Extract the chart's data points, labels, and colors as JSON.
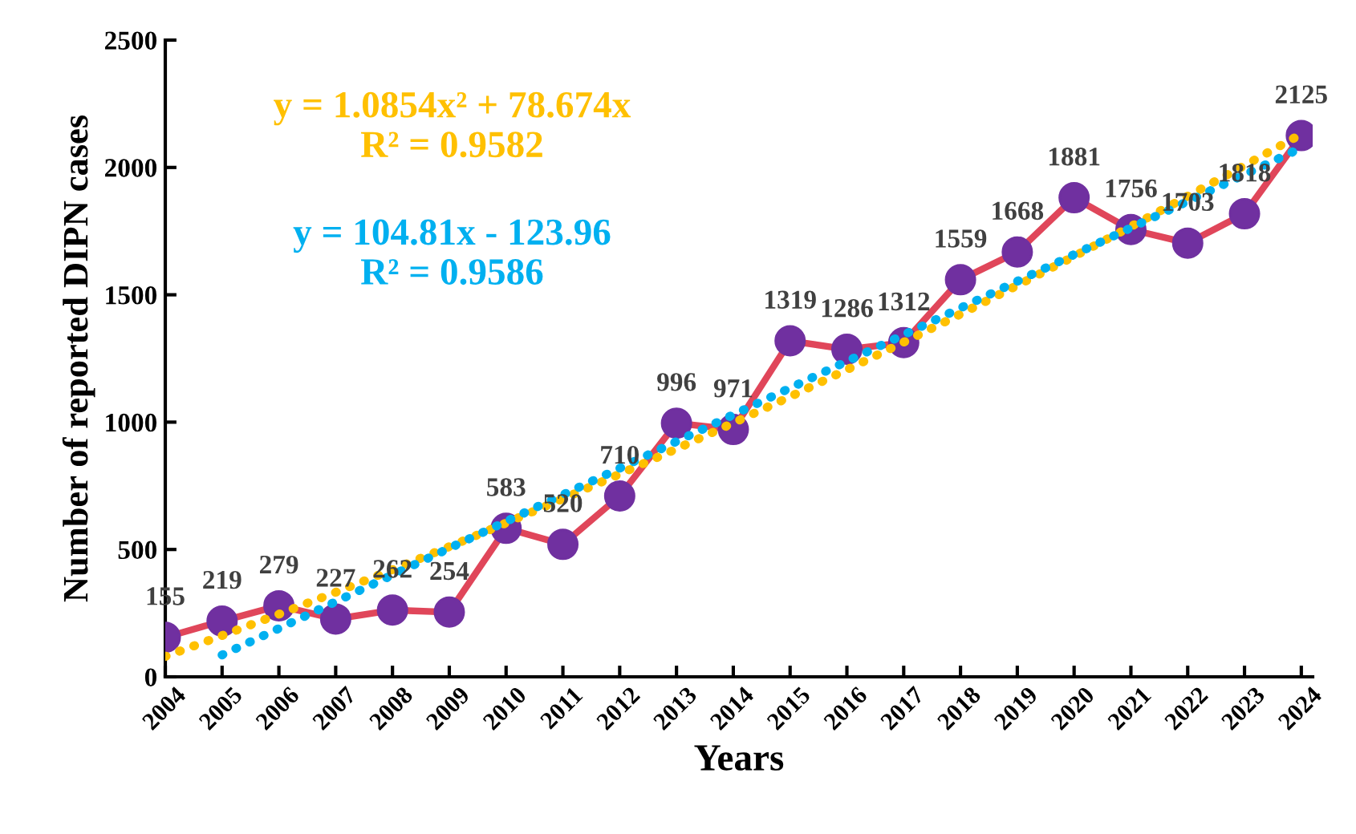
{
  "chart_data": {
    "type": "line",
    "xlabel": "Years",
    "ylabel": "Number of reported DIPN cases",
    "categories": [
      "2004",
      "2005",
      "2006",
      "2007",
      "2008",
      "2009",
      "2010",
      "2011",
      "2012",
      "2013",
      "2014",
      "2015",
      "2016",
      "2017",
      "2018",
      "2019",
      "2020",
      "2021",
      "2022",
      "2023",
      "2024"
    ],
    "ylim": [
      0,
      2500
    ],
    "yticks": [
      0,
      500,
      1000,
      1500,
      2000,
      2500
    ],
    "grid": false,
    "legend": false,
    "series": [
      {
        "color": "#e0465a",
        "colors": [
          "#7030a0",
          "#7030a0",
          "#7030a0",
          "#7030a0",
          "#7030a0",
          "#7030a0",
          "#7030a0",
          "#7030a0",
          "#7030a0",
          "#7030a0",
          "#7030a0",
          "#7030a0",
          "#7030a0",
          "#7030a0",
          "#7030a0",
          "#7030a0",
          "#7030a0",
          "#7030a0",
          "#7030a0",
          "#7030a0",
          "#7030a0"
        ],
        "marker": "circle",
        "line_style": "solid",
        "values": [
          155,
          219,
          279,
          227,
          262,
          254,
          583,
          520,
          710,
          996,
          971,
          1319,
          1286,
          1312,
          1559,
          1668,
          1881,
          1756,
          1703,
          1818,
          2125
        ],
        "value_labels": [
          "155",
          "219",
          "279",
          "227",
          "262",
          "254",
          "583",
          "520",
          "710",
          "996",
          "971",
          "1319",
          "1286",
          "1312",
          "1559",
          "1668",
          "1881",
          "1756",
          "1703",
          "1818",
          "2125"
        ]
      },
      {
        "name": "y = 1.0854x² + 78.674x\nR² = 0.9582",
        "color": "#ffc000",
        "marker": "none",
        "line_style": "dotted",
        "values": [
          80,
          162,
          246,
          332,
          421,
          511,
          604,
          699,
          796,
          895,
          997,
          1100,
          1206,
          1314,
          1424,
          1537,
          1651,
          1768,
          1887,
          2008,
          2131
        ]
      },
      {
        "name": "y = 104.81x - 123.96\nR² = 0.9586",
        "color": "#00b0f0",
        "marker": "none",
        "line_style": "dotted",
        "values": [
          null,
          86,
          190,
          295,
          400,
          505,
          610,
          715,
          819,
          924,
          1029,
          1134,
          1239,
          1343,
          1448,
          1553,
          1658,
          1763,
          1867,
          1972,
          2077
        ]
      }
    ]
  }
}
